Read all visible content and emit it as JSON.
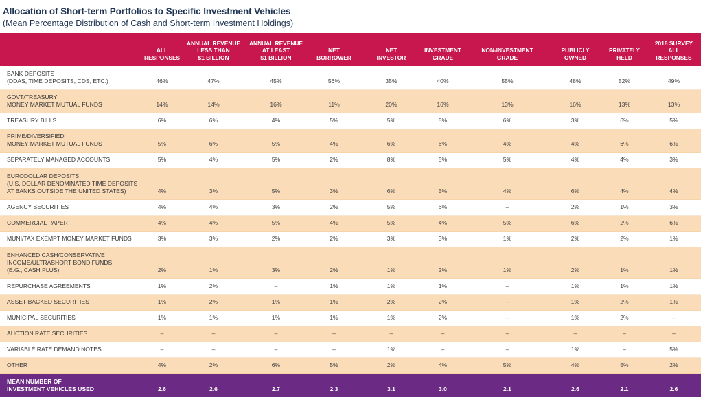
{
  "title": "Allocation of Short-term Portfolios to Specific Investment Vehicles",
  "subtitle": "(Mean Percentage Distribution of Cash and Short-term Investment Holdings)",
  "columns": [
    "",
    "ALL\nRESPONSES",
    "ANNUAL REVENUE\nLESS THAN\n$1 BILLION",
    "ANNUAL REVENUE\nAT LEAST\n$1 BILLION",
    "NET\nBORROWER",
    "NET\nINVESTOR",
    "INVESTMENT\nGRADE",
    "NON-INVESTMENT\nGRADE",
    "PUBLICLY\nOWNED",
    "PRIVATELY\nHELD",
    "2018 SURVEY\nALL\nRESPONSES"
  ],
  "rows": [
    {
      "label": "BANK DEPOSITS\n(DDAS, TIME DEPOSITS, CDS, ETC.)",
      "values": [
        "46%",
        "47%",
        "45%",
        "56%",
        "35%",
        "40%",
        "55%",
        "48%",
        "52%",
        "49%"
      ]
    },
    {
      "label": "GOVT/TREASURY\nMONEY MARKET MUTUAL FUNDS",
      "values": [
        "14%",
        "14%",
        "16%",
        "11%",
        "20%",
        "16%",
        "13%",
        "16%",
        "13%",
        "13%"
      ]
    },
    {
      "label": "TREASURY BILLS",
      "values": [
        "6%",
        "6%",
        "4%",
        "5%",
        "5%",
        "5%",
        "6%",
        "3%",
        "6%",
        "5%"
      ]
    },
    {
      "label": "PRIME/DIVERSIFIED\nMONEY MARKET MUTUAL FUNDS",
      "values": [
        "5%",
        "6%",
        "5%",
        "4%",
        "6%",
        "6%",
        "4%",
        "4%",
        "6%",
        "6%"
      ]
    },
    {
      "label": "SEPARATELY MANAGED ACCOUNTS",
      "values": [
        "5%",
        "4%",
        "5%",
        "2%",
        "8%",
        "5%",
        "5%",
        "4%",
        "4%",
        "3%"
      ]
    },
    {
      "label": "EURODOLLAR DEPOSITS\n(U.S. DOLLAR DENOMINATED TIME DEPOSITS\nAT BANKS OUTSIDE THE UNITED STATES)",
      "values": [
        "4%",
        "3%",
        "5%",
        "3%",
        "6%",
        "5%",
        "4%",
        "6%",
        "4%",
        "4%"
      ]
    },
    {
      "label": "AGENCY SECURITIES",
      "values": [
        "4%",
        "4%",
        "3%",
        "2%",
        "5%",
        "6%",
        "–",
        "2%",
        "1%",
        "3%"
      ]
    },
    {
      "label": "COMMERCIAL PAPER",
      "values": [
        "4%",
        "4%",
        "5%",
        "4%",
        "5%",
        "4%",
        "5%",
        "6%",
        "2%",
        "6%"
      ]
    },
    {
      "label": "MUNI/TAX EXEMPT MONEY MARKET FUNDS",
      "values": [
        "3%",
        "3%",
        "2%",
        "2%",
        "3%",
        "3%",
        "1%",
        "2%",
        "2%",
        "1%"
      ]
    },
    {
      "label": "ENHANCED CASH/CONSERVATIVE\nINCOME/ULTRASHORT BOND FUNDS\n(E.G., CASH PLUS)",
      "values": [
        "2%",
        "1%",
        "3%",
        "2%",
        "1%",
        "2%",
        "1%",
        "2%",
        "1%",
        "1%"
      ]
    },
    {
      "label": "REPURCHASE AGREEMENTS",
      "values": [
        "1%",
        "2%",
        "–",
        "1%",
        "1%",
        "1%",
        "–",
        "1%",
        "1%",
        "1%"
      ]
    },
    {
      "label": "ASSET-BACKED SECURITIES",
      "values": [
        "1%",
        "2%",
        "1%",
        "1%",
        "2%",
        "2%",
        "–",
        "1%",
        "2%",
        "1%"
      ]
    },
    {
      "label": "MUNICIPAL SECURITIES",
      "values": [
        "1%",
        "1%",
        "1%",
        "1%",
        "1%",
        "2%",
        "–",
        "1%",
        "2%",
        "–"
      ]
    },
    {
      "label": "AUCTION RATE SECURITIES",
      "values": [
        "–",
        "–",
        "–",
        "–",
        "–",
        "–",
        "–",
        "–",
        "–",
        "–"
      ]
    },
    {
      "label": "VARIABLE RATE DEMAND NOTES",
      "values": [
        "–",
        "–",
        "–",
        "–",
        "1%",
        "–",
        "–",
        "1%",
        "–",
        "5%"
      ]
    },
    {
      "label": "OTHER",
      "values": [
        "4%",
        "2%",
        "6%",
        "5%",
        "2%",
        "4%",
        "5%",
        "4%",
        "5%",
        "2%"
      ]
    }
  ],
  "mean_row": {
    "label": "MEAN NUMBER OF\nINVESTMENT VEHICLES USED",
    "values": [
      "2.6",
      "2.6",
      "2.7",
      "2.3",
      "3.1",
      "3.0",
      "2.1",
      "2.6",
      "2.1",
      "2.6"
    ]
  },
  "colors": {
    "header_bg": "#c8174f",
    "shade_row_bg": "#fbdcb8",
    "mean_row_bg": "#6b2a83",
    "title_color": "#1f3553"
  }
}
